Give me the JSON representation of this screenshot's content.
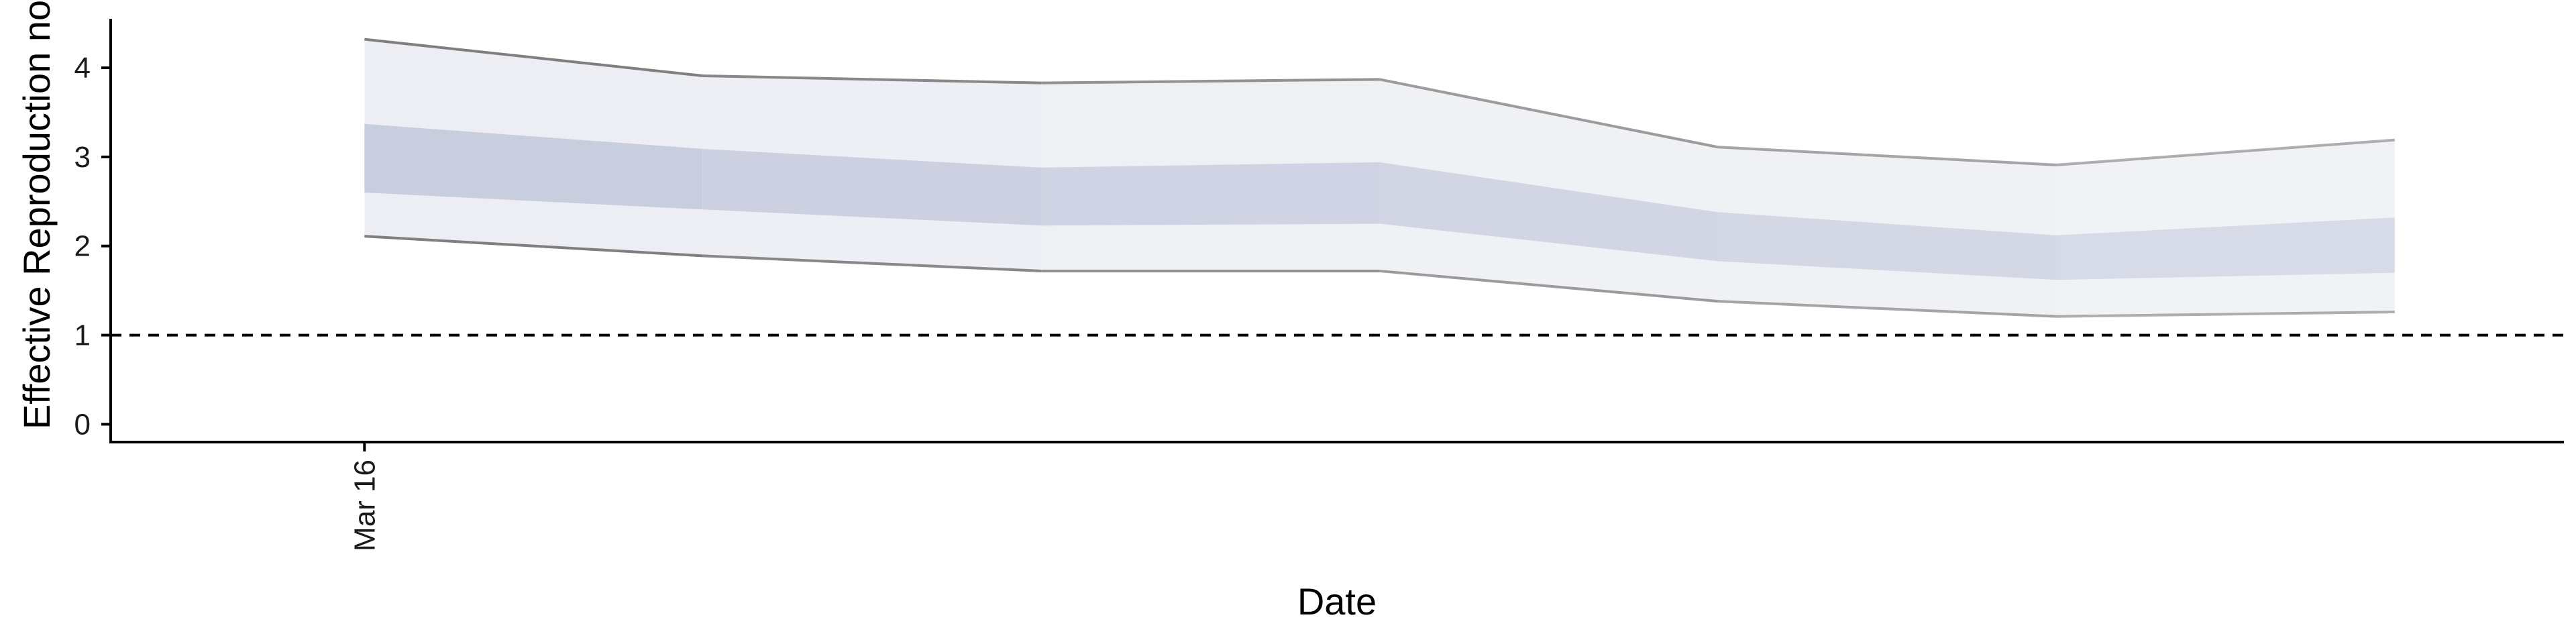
{
  "chart_data": {
    "type": "area",
    "title": "",
    "xlabel": "Date",
    "ylabel": "Effective Reproduction no",
    "x_ticks": [
      {
        "date": "2020-03-16",
        "label": "Mar 16"
      }
    ],
    "y_ticks": [
      0,
      1,
      2,
      3,
      4
    ],
    "ylim": [
      -0.2,
      4.55
    ],
    "xlim": [
      "2020-03-13",
      "2020-04-11"
    ],
    "reference_line": {
      "y": 1,
      "style": "dashed"
    },
    "grid": false,
    "legend": "none",
    "series": [
      {
        "x": [
          "2020-03-16",
          "2020-03-20",
          "2020-03-24",
          "2020-03-28",
          "2020-04-01",
          "2020-04-05",
          "2020-04-09"
        ],
        "upper_outer": [
          4.32,
          3.91,
          3.83,
          3.87,
          3.11,
          2.91,
          3.19
        ],
        "upper_inner": [
          3.37,
          3.09,
          2.88,
          2.94,
          2.38,
          2.12,
          2.32
        ],
        "lower_inner": [
          2.6,
          2.41,
          2.23,
          2.25,
          1.83,
          1.62,
          1.7
        ],
        "lower_outer": [
          2.11,
          1.89,
          1.72,
          1.72,
          1.38,
          1.21,
          1.26
        ]
      }
    ],
    "colors": {
      "inner_band": "#c9cedf",
      "outer_band": "#eceef3",
      "bound_line": "#7f7f7f",
      "reference_line": "#000000"
    }
  }
}
